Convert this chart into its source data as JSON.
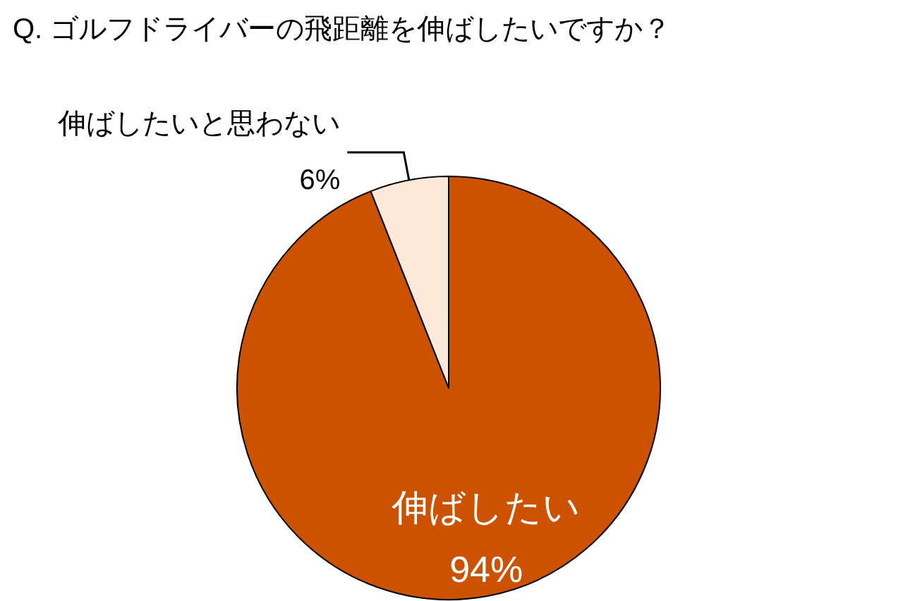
{
  "chart_data": {
    "type": "pie",
    "title": "Q. ゴルフドライバーの飛距離を伸ばしたいですか？",
    "categories": [
      "伸ばしたい",
      "伸ばしたいと思わない"
    ],
    "values": [
      94,
      6
    ],
    "colors": [
      "#cc5200",
      "#fde9d9"
    ],
    "value_labels": [
      "94%",
      "6%"
    ],
    "legend": false
  }
}
